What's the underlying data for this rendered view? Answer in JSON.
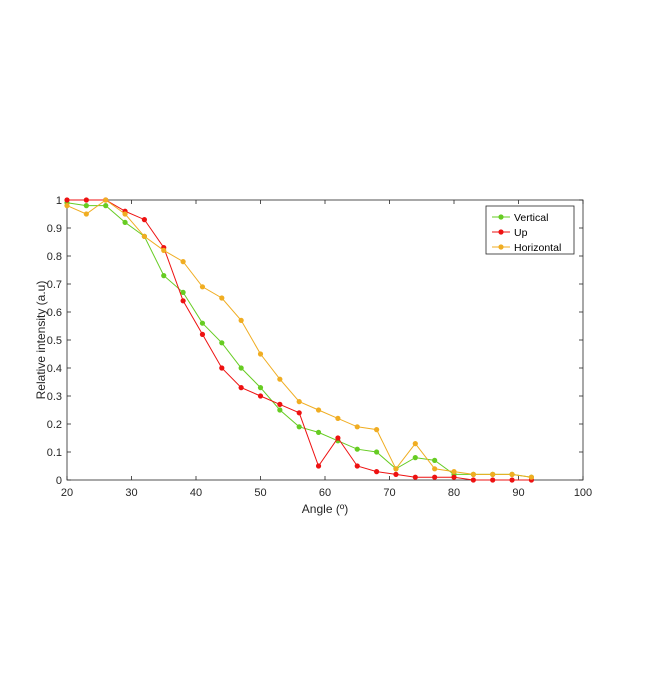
{
  "chart_data": {
    "type": "line",
    "xlabel": "Angle (º)",
    "ylabel": "Relative intensity (a.u)",
    "xlim": [
      20,
      100
    ],
    "ylim": [
      0,
      1
    ],
    "xticks": [
      "20",
      "30",
      "40",
      "50",
      "60",
      "70",
      "80",
      "90",
      "100"
    ],
    "yticks": [
      "0",
      "0.1",
      "0.2",
      "0.3",
      "0.4",
      "0.5",
      "0.6",
      "0.7",
      "0.8",
      "0.9",
      "1"
    ],
    "grid": false,
    "legend_position": "top-right",
    "x": [
      20,
      23,
      26,
      29,
      32,
      35,
      38,
      41,
      44,
      47,
      50,
      53,
      56,
      59,
      62,
      65,
      68,
      71,
      74,
      77,
      80,
      83,
      86,
      89,
      92
    ],
    "series": [
      {
        "name": "Vertical",
        "color": "#66cc22",
        "values": [
          0.99,
          0.98,
          0.98,
          0.92,
          0.87,
          0.73,
          0.67,
          0.56,
          0.49,
          0.4,
          0.33,
          0.25,
          0.19,
          0.17,
          0.14,
          0.11,
          0.1,
          0.04,
          0.08,
          0.07,
          0.02,
          0.02,
          0.02,
          0.02,
          0.01
        ]
      },
      {
        "name": "Up",
        "color": "#ee1111",
        "values": [
          1.0,
          1.0,
          1.0,
          0.96,
          0.93,
          0.83,
          0.64,
          0.52,
          0.4,
          0.33,
          0.3,
          0.27,
          0.24,
          0.05,
          0.15,
          0.05,
          0.03,
          0.02,
          0.01,
          0.01,
          0.01,
          0.0,
          0.0,
          0.0,
          0.0
        ]
      },
      {
        "name": "Horizontal",
        "color": "#f0ad22",
        "values": [
          0.98,
          0.95,
          1.0,
          0.95,
          0.87,
          0.82,
          0.78,
          0.69,
          0.65,
          0.57,
          0.45,
          0.36,
          0.28,
          0.25,
          0.22,
          0.19,
          0.18,
          0.04,
          0.13,
          0.04,
          0.03,
          0.02,
          0.02,
          0.02,
          0.01
        ]
      }
    ]
  }
}
